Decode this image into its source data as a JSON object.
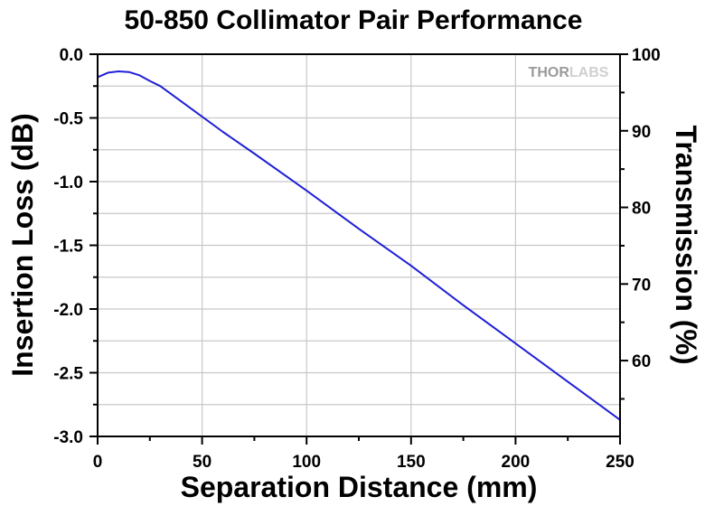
{
  "chart_data": {
    "type": "line",
    "title": "50-850 Collimator Pair Performance",
    "xlabel": "Separation Distance (mm)",
    "ylabel": "Insertion Loss (dB)",
    "y2label": "Transmission (%)",
    "xlim": [
      0,
      250
    ],
    "ylim": [
      -3.0,
      0.0
    ],
    "y2lim": [
      50.1,
      100
    ],
    "x_ticks": [
      0,
      50,
      100,
      150,
      200,
      250
    ],
    "x_tick_labels": [
      "0",
      "50",
      "100",
      "150",
      "200",
      "250"
    ],
    "y_ticks": [
      0.0,
      -0.5,
      -1.0,
      -1.5,
      -2.0,
      -2.5,
      -3.0
    ],
    "y_tick_labels": [
      "0.0",
      "-0.5",
      "-1.0",
      "-1.5",
      "-2.0",
      "-2.5",
      "-3.0"
    ],
    "y2_ticks": [
      100,
      90,
      80,
      70,
      60
    ],
    "y2_tick_labels": [
      "100",
      "90",
      "80",
      "70",
      "60"
    ],
    "grid": true,
    "line_color": "#1f1fd6",
    "series": [
      {
        "x": [
          0,
          5,
          10,
          15,
          20,
          25,
          30,
          40,
          50,
          60,
          75,
          100,
          125,
          150,
          175,
          200,
          225,
          250
        ],
        "y": [
          -0.18,
          -0.145,
          -0.135,
          -0.14,
          -0.165,
          -0.21,
          -0.25,
          -0.37,
          -0.49,
          -0.61,
          -0.78,
          -1.07,
          -1.37,
          -1.66,
          -1.97,
          -2.27,
          -2.57,
          -2.87
        ]
      }
    ]
  },
  "watermark": {
    "text_dark": "THOR",
    "text_light": "LABS"
  }
}
